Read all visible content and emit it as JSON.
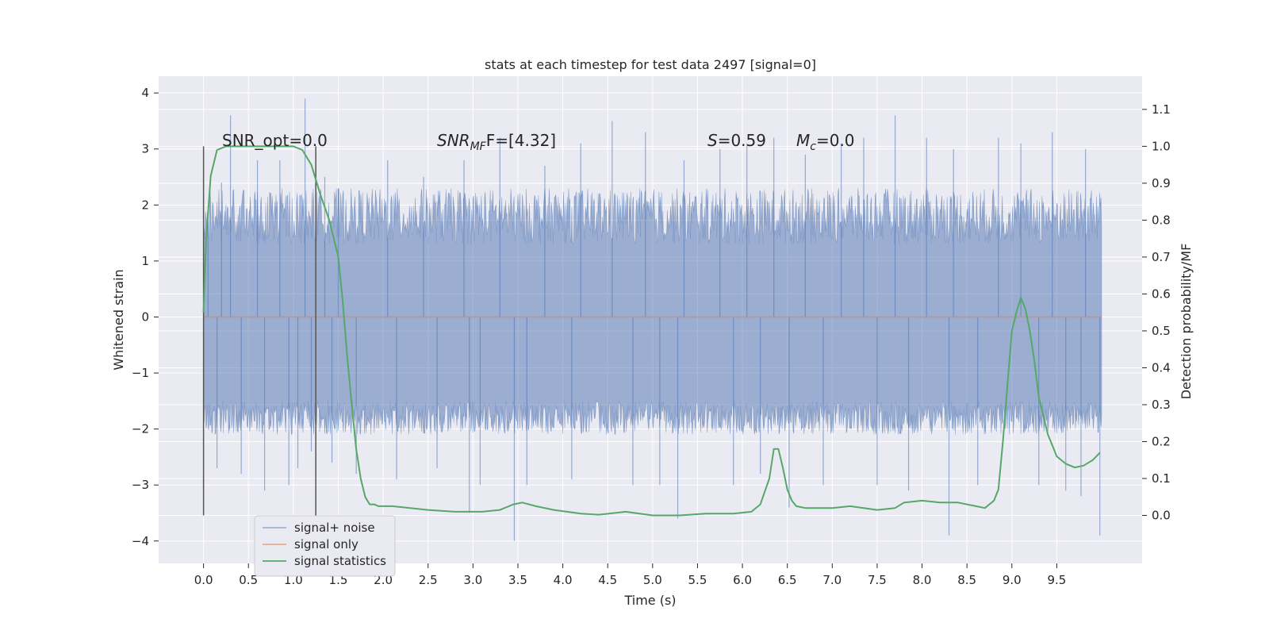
{
  "chart_data": {
    "type": "line",
    "title": "stats at each timestep for test data 2497 [signal=0]",
    "xlabel": "Time (s)",
    "ylabel_left": "Whitened strain",
    "ylabel_right": "Detection probability/MF",
    "xlim": [
      -0.5,
      10.45
    ],
    "ylim_left": [
      -4.4,
      4.3
    ],
    "ylim_right": [
      -0.13,
      1.19
    ],
    "x_ticks": [
      "0.0",
      "0.5",
      "1.0",
      "1.5",
      "2.0",
      "2.5",
      "3.0",
      "3.5",
      "4.0",
      "4.5",
      "5.0",
      "5.5",
      "6.0",
      "6.5",
      "7.0",
      "7.5",
      "8.0",
      "8.5",
      "9.0",
      "9.5"
    ],
    "y_left_ticks": [
      "−4",
      "−3",
      "−2",
      "−1",
      "0",
      "1",
      "2",
      "3",
      "4"
    ],
    "y_right_ticks": [
      "0.0",
      "0.1",
      "0.2",
      "0.3",
      "0.4",
      "0.5",
      "0.6",
      "0.7",
      "0.8",
      "0.9",
      "1.0",
      "1.1"
    ],
    "grid": true,
    "legend_position": "lower-left",
    "annotations": {
      "snr_opt": "SNR_opt=0.0",
      "snr_mf_italic": "SNR",
      "snr_mf_sub": "MF",
      "snr_mf_rest": "F=[4.32]",
      "s_italic": "S",
      "s_rest": "=0.59",
      "mc_italic": "M",
      "mc_sub": "c",
      "mc_rest": "=0.0"
    },
    "vertical_markers_x": [
      0.0,
      1.25
    ],
    "series": [
      {
        "name": "signal+ noise",
        "color": "#4c72b0",
        "axis": "left",
        "band_envelope": {
          "x": [
            0.0,
            10.0
          ],
          "core_range": [
            -1.5,
            1.3
          ],
          "typical_range": [
            -2.1,
            2.3
          ],
          "peaks": [
            [
              0.05,
              1.7
            ],
            [
              0.15,
              -2.7
            ],
            [
              0.2,
              2.4
            ],
            [
              0.3,
              3.6
            ],
            [
              0.42,
              -2.8
            ],
            [
              0.6,
              2.8
            ],
            [
              0.68,
              -3.1
            ],
            [
              0.85,
              2.8
            ],
            [
              0.95,
              -3.0
            ],
            [
              1.05,
              -2.7
            ],
            [
              1.13,
              3.9
            ],
            [
              1.2,
              -2.4
            ],
            [
              1.35,
              2.5
            ],
            [
              1.43,
              -2.6
            ],
            [
              1.5,
              2.3
            ],
            [
              1.7,
              -2.8
            ],
            [
              2.05,
              2.8
            ],
            [
              2.15,
              -2.9
            ],
            [
              2.45,
              2.5
            ],
            [
              2.6,
              -2.7
            ],
            [
              2.9,
              2.8
            ],
            [
              2.96,
              -3.5
            ],
            [
              3.08,
              -3.0
            ],
            [
              3.3,
              3.2
            ],
            [
              3.46,
              -4.0
            ],
            [
              3.6,
              -3.0
            ],
            [
              3.8,
              2.7
            ],
            [
              4.1,
              -2.9
            ],
            [
              4.2,
              3.1
            ],
            [
              4.55,
              3.5
            ],
            [
              4.78,
              -3.0
            ],
            [
              4.92,
              3.3
            ],
            [
              5.08,
              -3.0
            ],
            [
              5.28,
              -3.6
            ],
            [
              5.35,
              2.8
            ],
            [
              5.75,
              3.0
            ],
            [
              5.9,
              -3.0
            ],
            [
              6.05,
              3.1
            ],
            [
              6.2,
              -2.8
            ],
            [
              6.35,
              3.2
            ],
            [
              6.52,
              -3.4
            ],
            [
              6.7,
              2.9
            ],
            [
              6.9,
              -3.0
            ],
            [
              7.1,
              3.1
            ],
            [
              7.35,
              3.2
            ],
            [
              7.5,
              -3.0
            ],
            [
              7.7,
              3.6
            ],
            [
              7.85,
              -3.1
            ],
            [
              8.05,
              3.2
            ],
            [
              8.3,
              -3.9
            ],
            [
              8.35,
              3.0
            ],
            [
              8.62,
              -3.0
            ],
            [
              8.85,
              3.2
            ],
            [
              9.1,
              3.1
            ],
            [
              9.3,
              -3.0
            ],
            [
              9.45,
              3.3
            ],
            [
              9.6,
              -3.1
            ],
            [
              9.77,
              -3.2
            ],
            [
              9.82,
              3.0
            ],
            [
              9.98,
              -3.9
            ]
          ]
        }
      },
      {
        "name": "signal only",
        "color": "#dd8452",
        "axis": "left",
        "x": [
          0.0,
          10.0
        ],
        "y": [
          0.0,
          0.0
        ]
      },
      {
        "name": "signal statistics",
        "color": "#55a868",
        "axis": "right",
        "x": [
          0.0,
          0.03,
          0.08,
          0.15,
          0.25,
          0.4,
          0.6,
          0.8,
          1.0,
          1.1,
          1.2,
          1.3,
          1.4,
          1.5,
          1.55,
          1.6,
          1.65,
          1.7,
          1.75,
          1.8,
          1.85,
          1.9,
          1.95,
          2.0,
          2.1,
          2.3,
          2.5,
          2.8,
          3.1,
          3.3,
          3.45,
          3.55,
          3.7,
          3.9,
          4.2,
          4.4,
          4.7,
          5.0,
          5.3,
          5.6,
          5.9,
          6.1,
          6.2,
          6.3,
          6.35,
          6.4,
          6.45,
          6.5,
          6.55,
          6.6,
          6.7,
          6.8,
          7.0,
          7.2,
          7.5,
          7.7,
          7.8,
          8.0,
          8.2,
          8.4,
          8.6,
          8.7,
          8.8,
          8.85,
          8.9,
          8.95,
          9.0,
          9.05,
          9.1,
          9.15,
          9.2,
          9.25,
          9.3,
          9.4,
          9.5,
          9.6,
          9.7,
          9.8,
          9.9,
          9.98
        ],
        "y": [
          0.55,
          0.75,
          0.92,
          0.99,
          1.0,
          1.0,
          1.0,
          1.0,
          1.0,
          0.99,
          0.95,
          0.87,
          0.8,
          0.7,
          0.58,
          0.43,
          0.3,
          0.18,
          0.1,
          0.05,
          0.03,
          0.03,
          0.025,
          0.025,
          0.025,
          0.02,
          0.015,
          0.01,
          0.01,
          0.015,
          0.03,
          0.035,
          0.025,
          0.015,
          0.005,
          0.002,
          0.01,
          0.0,
          0.0,
          0.005,
          0.005,
          0.01,
          0.03,
          0.1,
          0.18,
          0.18,
          0.13,
          0.07,
          0.04,
          0.025,
          0.02,
          0.02,
          0.02,
          0.025,
          0.015,
          0.02,
          0.035,
          0.04,
          0.035,
          0.035,
          0.025,
          0.02,
          0.04,
          0.07,
          0.2,
          0.35,
          0.5,
          0.55,
          0.59,
          0.56,
          0.5,
          0.42,
          0.32,
          0.22,
          0.16,
          0.14,
          0.13,
          0.135,
          0.15,
          0.17
        ]
      }
    ]
  }
}
